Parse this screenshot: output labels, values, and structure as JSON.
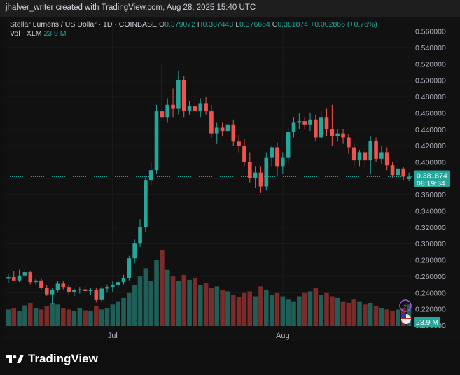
{
  "credit": "jhalver_writer created with TradingView.com, Aug 28, 2025 15:40 UTC",
  "symbol": {
    "title": "Stellar Lumens / US Dollar · 1D · COINBASE",
    "o_label": "O",
    "o": "0.379072",
    "h_label": "H",
    "h": "0.387448",
    "l_label": "L",
    "l": "0.376664",
    "c_label": "C",
    "c": "0.381874",
    "change": "+0.002866 (+0.76%)"
  },
  "volume_legend": {
    "label": "Vol · XLM",
    "value": "23.9 M"
  },
  "price_tag": {
    "price": "0.381874",
    "countdown": "08:19:34"
  },
  "volume_tag": "23.9 M",
  "brand": "TradingView",
  "colors": {
    "up": "#26a69a",
    "down": "#ef5350",
    "vol_up": "#1f5f58",
    "vol_down": "#7c2b2b",
    "bg": "#111111"
  },
  "chart_data": {
    "type": "candlestick",
    "ylim": [
      0.2,
      0.57
    ],
    "y_ticks": [
      "0.560000",
      "0.540000",
      "0.520000",
      "0.500000",
      "0.480000",
      "0.460000",
      "0.440000",
      "0.420000",
      "0.400000",
      "0.380000",
      "0.360000",
      "0.340000",
      "0.320000",
      "0.300000",
      "0.280000",
      "0.260000",
      "0.240000",
      "0.220000",
      "0.200000"
    ],
    "x_ticks": [
      {
        "label": "Jul",
        "index": 19
      },
      {
        "label": "Aug",
        "index": 50
      }
    ],
    "candles": [
      [
        0.257,
        0.263,
        0.252,
        0.259
      ],
      [
        0.259,
        0.266,
        0.254,
        0.255
      ],
      [
        0.255,
        0.268,
        0.253,
        0.261
      ],
      [
        0.261,
        0.27,
        0.258,
        0.265
      ],
      [
        0.265,
        0.267,
        0.25,
        0.253
      ],
      [
        0.253,
        0.257,
        0.249,
        0.255
      ],
      [
        0.255,
        0.258,
        0.244,
        0.246
      ],
      [
        0.246,
        0.249,
        0.236,
        0.238
      ],
      [
        0.238,
        0.246,
        0.226,
        0.243
      ],
      [
        0.243,
        0.254,
        0.24,
        0.251
      ],
      [
        0.251,
        0.254,
        0.244,
        0.247
      ],
      [
        0.247,
        0.25,
        0.238,
        0.241
      ],
      [
        0.241,
        0.245,
        0.236,
        0.243
      ],
      [
        0.243,
        0.247,
        0.239,
        0.244
      ],
      [
        0.244,
        0.248,
        0.24,
        0.242
      ],
      [
        0.242,
        0.246,
        0.237,
        0.243
      ],
      [
        0.243,
        0.246,
        0.228,
        0.231
      ],
      [
        0.231,
        0.247,
        0.229,
        0.245
      ],
      [
        0.245,
        0.25,
        0.24,
        0.247
      ],
      [
        0.247,
        0.254,
        0.241,
        0.249
      ],
      [
        0.249,
        0.256,
        0.246,
        0.253
      ],
      [
        0.253,
        0.262,
        0.25,
        0.258
      ],
      [
        0.258,
        0.285,
        0.255,
        0.282
      ],
      [
        0.282,
        0.305,
        0.276,
        0.3
      ],
      [
        0.3,
        0.33,
        0.296,
        0.32
      ],
      [
        0.32,
        0.382,
        0.315,
        0.378
      ],
      [
        0.378,
        0.4,
        0.372,
        0.39
      ],
      [
        0.39,
        0.47,
        0.385,
        0.462
      ],
      [
        0.462,
        0.52,
        0.45,
        0.455
      ],
      [
        0.455,
        0.478,
        0.448,
        0.47
      ],
      [
        0.47,
        0.49,
        0.455,
        0.465
      ],
      [
        0.465,
        0.512,
        0.458,
        0.5
      ],
      [
        0.5,
        0.505,
        0.455,
        0.463
      ],
      [
        0.463,
        0.475,
        0.458,
        0.468
      ],
      [
        0.468,
        0.482,
        0.46,
        0.462
      ],
      [
        0.462,
        0.478,
        0.455,
        0.472
      ],
      [
        0.472,
        0.48,
        0.458,
        0.462
      ],
      [
        0.462,
        0.47,
        0.43,
        0.435
      ],
      [
        0.435,
        0.448,
        0.422,
        0.442
      ],
      [
        0.442,
        0.448,
        0.432,
        0.438
      ],
      [
        0.438,
        0.45,
        0.43,
        0.446
      ],
      [
        0.446,
        0.452,
        0.42,
        0.425
      ],
      [
        0.425,
        0.433,
        0.412,
        0.42
      ],
      [
        0.42,
        0.428,
        0.395,
        0.4
      ],
      [
        0.4,
        0.412,
        0.375,
        0.38
      ],
      [
        0.38,
        0.395,
        0.368,
        0.387
      ],
      [
        0.387,
        0.395,
        0.362,
        0.37
      ],
      [
        0.37,
        0.412,
        0.365,
        0.405
      ],
      [
        0.405,
        0.42,
        0.395,
        0.418
      ],
      [
        0.418,
        0.424,
        0.382,
        0.395
      ],
      [
        0.395,
        0.412,
        0.386,
        0.405
      ],
      [
        0.405,
        0.442,
        0.398,
        0.437
      ],
      [
        0.437,
        0.455,
        0.43,
        0.448
      ],
      [
        0.448,
        0.46,
        0.44,
        0.45
      ],
      [
        0.45,
        0.455,
        0.44,
        0.446
      ],
      [
        0.446,
        0.46,
        0.438,
        0.452
      ],
      [
        0.452,
        0.458,
        0.426,
        0.43
      ],
      [
        0.43,
        0.462,
        0.428,
        0.455
      ],
      [
        0.455,
        0.465,
        0.432,
        0.44
      ],
      [
        0.44,
        0.47,
        0.42,
        0.432
      ],
      [
        0.432,
        0.44,
        0.425,
        0.435
      ],
      [
        0.435,
        0.44,
        0.422,
        0.43
      ],
      [
        0.43,
        0.434,
        0.41,
        0.418
      ],
      [
        0.418,
        0.423,
        0.395,
        0.402
      ],
      [
        0.402,
        0.414,
        0.395,
        0.412
      ],
      [
        0.412,
        0.417,
        0.392,
        0.402
      ],
      [
        0.402,
        0.432,
        0.385,
        0.426
      ],
      [
        0.426,
        0.43,
        0.4,
        0.404
      ],
      [
        0.404,
        0.42,
        0.398,
        0.412
      ],
      [
        0.412,
        0.418,
        0.39,
        0.396
      ],
      [
        0.396,
        0.4,
        0.38,
        0.384
      ],
      [
        0.384,
        0.396,
        0.38,
        0.392
      ],
      [
        0.392,
        0.394,
        0.378,
        0.382
      ],
      [
        0.379,
        0.387,
        0.377,
        0.382
      ]
    ],
    "volumes": [
      20,
      22,
      18,
      25,
      28,
      22,
      20,
      24,
      28,
      26,
      22,
      20,
      18,
      22,
      19,
      18,
      24,
      20,
      22,
      26,
      30,
      34,
      40,
      50,
      60,
      70,
      55,
      80,
      92,
      68,
      60,
      55,
      62,
      56,
      58,
      50,
      52,
      46,
      48,
      44,
      42,
      38,
      35,
      40,
      42,
      36,
      48,
      44,
      38,
      40,
      36,
      32,
      30,
      36,
      40,
      42,
      46,
      38,
      40,
      36,
      34,
      30,
      28,
      32,
      30,
      26,
      28,
      24,
      22,
      20,
      18,
      20,
      22,
      26
    ],
    "volume_max": 100
  }
}
